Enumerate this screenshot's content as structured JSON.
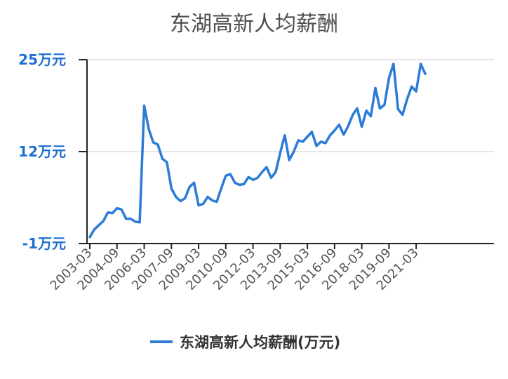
{
  "chart_data": {
    "type": "line",
    "title": "东湖高新人均薪酬",
    "xlabel": "",
    "ylabel": "",
    "ylim": [
      -1,
      25
    ],
    "yticks": [
      {
        "value": 25,
        "label": "25万元"
      },
      {
        "value": 12,
        "label": "12万元"
      },
      {
        "value": -1,
        "label": "-1万元"
      }
    ],
    "xtick_labels": [
      "2003-03",
      "2004-09",
      "2006-03",
      "2007-09",
      "2009-03",
      "2010-09",
      "2012-03",
      "2013-09",
      "2015-03",
      "2016-09",
      "2018-03",
      "2019-09",
      "2021-03"
    ],
    "x_unit": "quarter",
    "x": [
      "2003-03",
      "2003-06",
      "2003-09",
      "2003-12",
      "2004-03",
      "2004-06",
      "2004-09",
      "2004-12",
      "2005-03",
      "2005-06",
      "2005-09",
      "2005-12",
      "2006-03",
      "2006-06",
      "2006-09",
      "2006-12",
      "2007-03",
      "2007-06",
      "2007-09",
      "2007-12",
      "2008-03",
      "2008-06",
      "2008-09",
      "2008-12",
      "2009-03",
      "2009-06",
      "2009-09",
      "2009-12",
      "2010-03",
      "2010-06",
      "2010-09",
      "2010-12",
      "2011-03",
      "2011-06",
      "2011-09",
      "2011-12",
      "2012-03",
      "2012-06",
      "2012-09",
      "2012-12",
      "2013-03",
      "2013-06",
      "2013-09",
      "2013-12",
      "2014-03",
      "2014-06",
      "2014-09",
      "2014-12",
      "2015-03",
      "2015-06",
      "2015-09",
      "2015-12",
      "2016-03",
      "2016-06",
      "2016-09",
      "2016-12",
      "2017-03",
      "2017-06",
      "2017-09",
      "2017-12",
      "2018-03",
      "2018-06",
      "2018-09",
      "2018-12",
      "2019-03",
      "2019-06",
      "2019-09",
      "2019-12",
      "2020-03",
      "2020-06",
      "2020-09",
      "2020-12",
      "2021-03",
      "2021-06",
      "2021-09"
    ],
    "series": [
      {
        "name": "东湖高新人均薪酬(万元)",
        "color": "#2b7bd7",
        "values": [
          -0.1,
          1.0,
          1.6,
          2.2,
          3.4,
          3.3,
          4.0,
          3.8,
          2.5,
          2.5,
          2.1,
          2.0,
          18.5,
          15.2,
          13.3,
          13.0,
          11.0,
          10.5,
          6.8,
          5.6,
          5.0,
          5.4,
          7.0,
          7.6,
          4.4,
          4.6,
          5.6,
          5.1,
          4.9,
          6.8,
          8.6,
          8.8,
          7.6,
          7.3,
          7.4,
          8.4,
          8.0,
          8.3,
          9.1,
          9.8,
          8.3,
          9.1,
          11.8,
          14.3,
          10.8,
          12.0,
          13.6,
          13.4,
          14.1,
          14.8,
          12.8,
          13.4,
          13.2,
          14.3,
          15.0,
          15.8,
          14.4,
          15.6,
          17.2,
          18.1,
          15.5,
          17.8,
          17.0,
          21.0,
          18.1,
          18.6,
          22.4,
          24.4,
          18.0,
          17.2,
          19.4,
          21.2,
          20.5,
          24.4,
          23.0
        ]
      }
    ],
    "grid": true,
    "legend_position": "bottom"
  }
}
